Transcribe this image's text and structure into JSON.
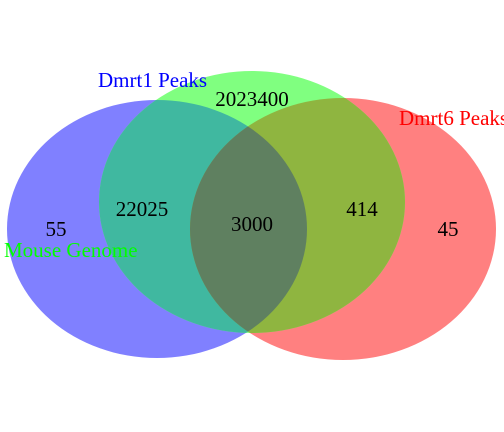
{
  "diagram": {
    "type": "venn",
    "sets": [
      {
        "id": "dmrt1",
        "label": "Dmrt1 Peaks",
        "color": "#0000ff",
        "fill": "#8080ff"
      },
      {
        "id": "genome",
        "label": "Mouse Genome",
        "color": "#00ff00",
        "fill": "#80ff80"
      },
      {
        "id": "dmrt6",
        "label": "Dmrt6 Peaks",
        "color": "#ff0000",
        "fill": "#ff8080"
      }
    ],
    "regions": {
      "dmrt1_only": "55",
      "genome_only": "2023400",
      "dmrt6_only": "45",
      "dmrt1_genome": "22025",
      "genome_dmrt6": "414",
      "all_three": "3000"
    }
  }
}
